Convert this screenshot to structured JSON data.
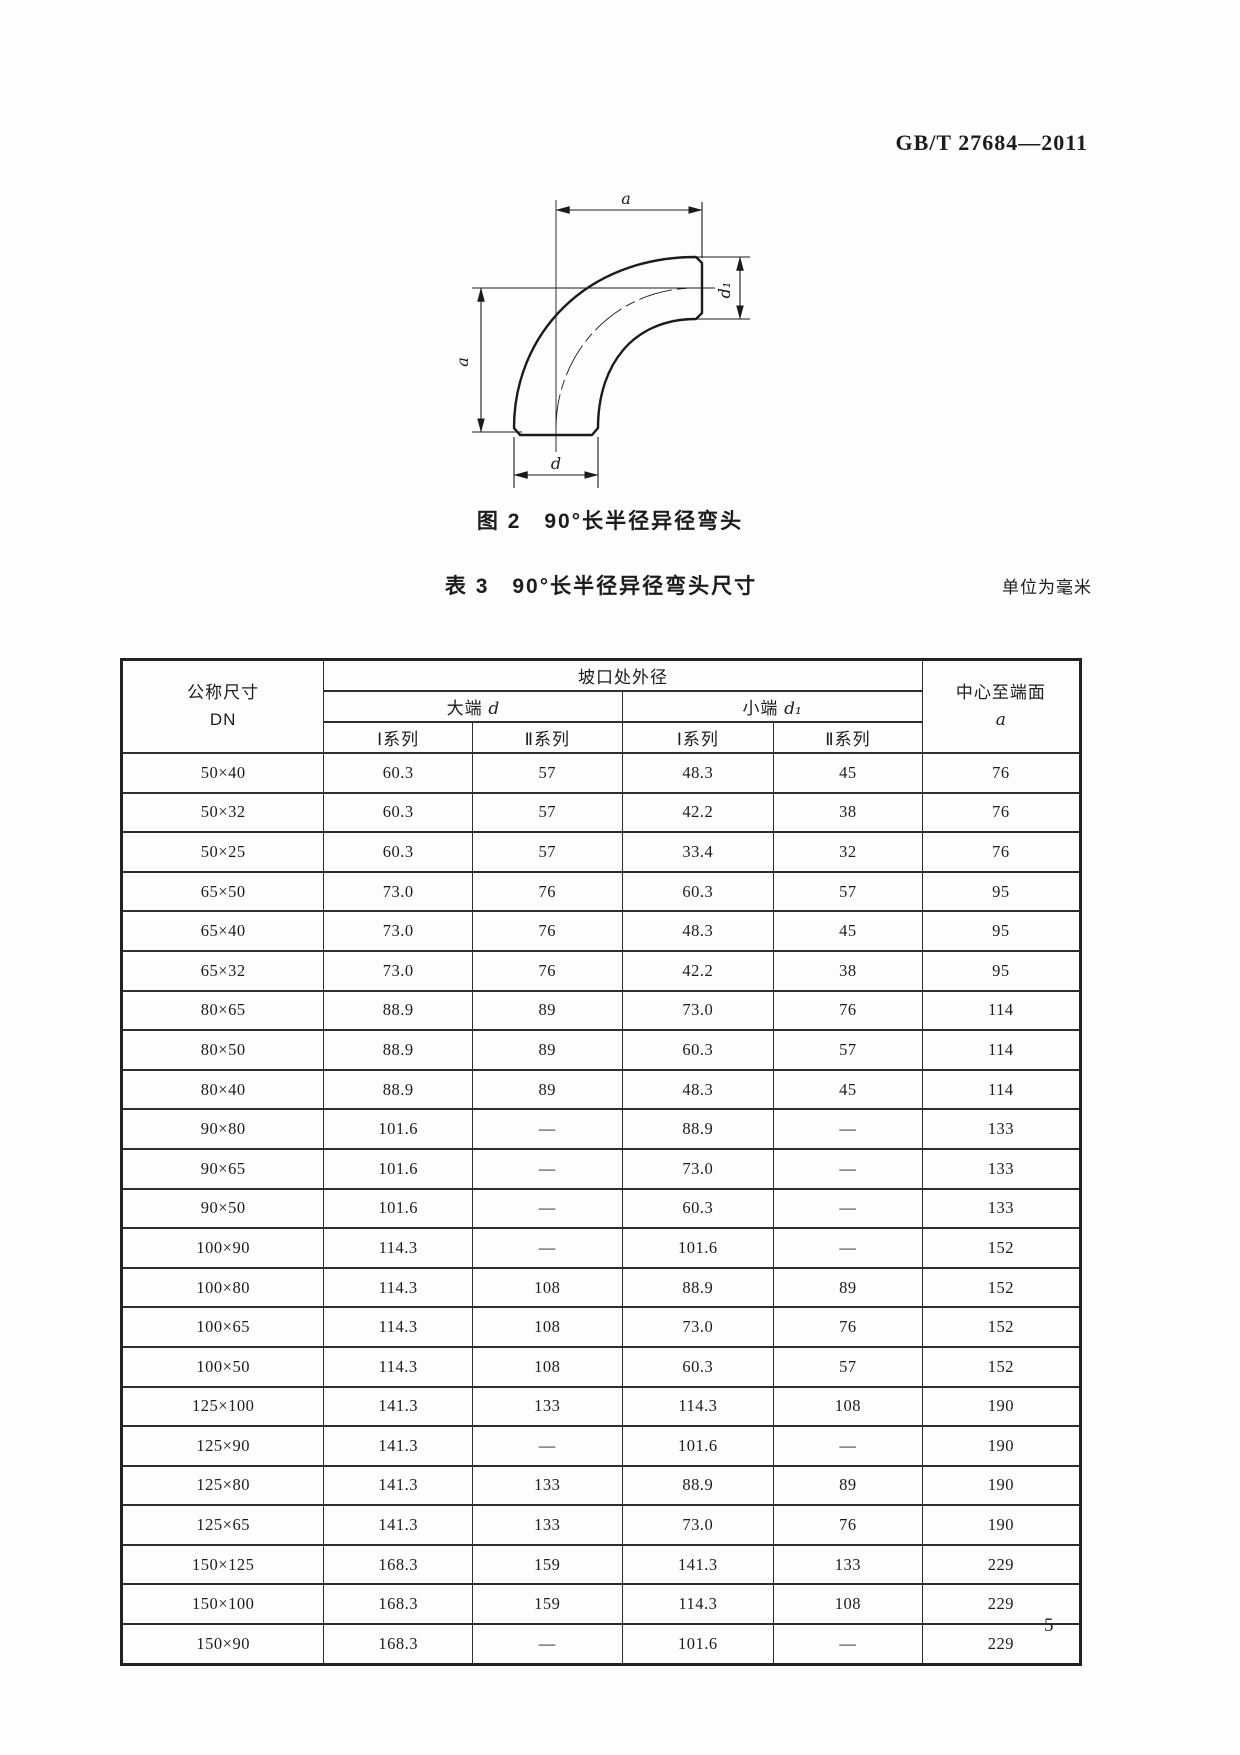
{
  "page": {
    "standard_code": "GB/T 27684—2011",
    "page_number": "5"
  },
  "figure": {
    "caption": "图 2　90°长半径异径弯头",
    "labels": {
      "a_top": "a",
      "a_left": "a",
      "d_bottom": "d",
      "d1_right": "d₁"
    }
  },
  "table": {
    "caption": "表 3　90°长半径异径弯头尺寸",
    "unit_note": "单位为毫米",
    "header": {
      "dn_line1": "公称尺寸",
      "dn_line2": "DN",
      "groove_od": "坡口处外径",
      "big_end_label": "大端 ",
      "big_end_symbol": "d",
      "small_end_label": "小端 ",
      "small_end_symbol": "d₁",
      "series_1": "Ⅰ系列",
      "series_2": "Ⅱ系列",
      "center_to_face": "中心至端面",
      "center_to_face_symbol": "a"
    },
    "rows": [
      [
        "50×40",
        "60.3",
        "57",
        "48.3",
        "45",
        "76"
      ],
      [
        "50×32",
        "60.3",
        "57",
        "42.2",
        "38",
        "76"
      ],
      [
        "50×25",
        "60.3",
        "57",
        "33.4",
        "32",
        "76"
      ],
      [
        "65×50",
        "73.0",
        "76",
        "60.3",
        "57",
        "95"
      ],
      [
        "65×40",
        "73.0",
        "76",
        "48.3",
        "45",
        "95"
      ],
      [
        "65×32",
        "73.0",
        "76",
        "42.2",
        "38",
        "95"
      ],
      [
        "80×65",
        "88.9",
        "89",
        "73.0",
        "76",
        "114"
      ],
      [
        "80×50",
        "88.9",
        "89",
        "60.3",
        "57",
        "114"
      ],
      [
        "80×40",
        "88.9",
        "89",
        "48.3",
        "45",
        "114"
      ],
      [
        "90×80",
        "101.6",
        "—",
        "88.9",
        "—",
        "133"
      ],
      [
        "90×65",
        "101.6",
        "—",
        "73.0",
        "—",
        "133"
      ],
      [
        "90×50",
        "101.6",
        "—",
        "60.3",
        "—",
        "133"
      ],
      [
        "100×90",
        "114.3",
        "—",
        "101.6",
        "—",
        "152"
      ],
      [
        "100×80",
        "114.3",
        "108",
        "88.9",
        "89",
        "152"
      ],
      [
        "100×65",
        "114.3",
        "108",
        "73.0",
        "76",
        "152"
      ],
      [
        "100×50",
        "114.3",
        "108",
        "60.3",
        "57",
        "152"
      ],
      [
        "125×100",
        "141.3",
        "133",
        "114.3",
        "108",
        "190"
      ],
      [
        "125×90",
        "141.3",
        "—",
        "101.6",
        "—",
        "190"
      ],
      [
        "125×80",
        "141.3",
        "133",
        "88.9",
        "89",
        "190"
      ],
      [
        "125×65",
        "141.3",
        "133",
        "73.0",
        "76",
        "190"
      ],
      [
        "150×125",
        "168.3",
        "159",
        "141.3",
        "133",
        "229"
      ],
      [
        "150×100",
        "168.3",
        "159",
        "114.3",
        "108",
        "229"
      ],
      [
        "150×90",
        "168.3",
        "—",
        "101.6",
        "—",
        "229"
      ]
    ]
  }
}
